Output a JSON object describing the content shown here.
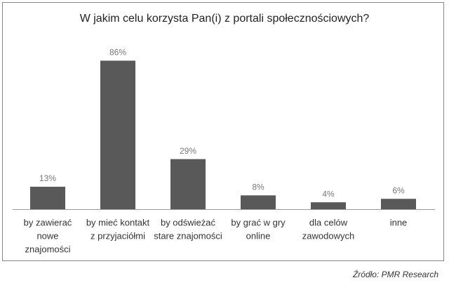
{
  "chart_data": {
    "type": "bar",
    "title": "W jakim celu korzysta Pan(i) z portali społecznościowych?",
    "categories": [
      [
        "by zawierać",
        "nowe",
        "znajomości"
      ],
      [
        "by mieć kontakt",
        "z przyjaciółmi"
      ],
      [
        "by odświeżać",
        "stare znajomości"
      ],
      [
        "by grać w gry",
        "online"
      ],
      [
        "dla celów",
        "zawodowych"
      ],
      [
        "inne"
      ]
    ],
    "values": [
      13,
      86,
      29,
      8,
      4,
      6
    ],
    "value_labels": [
      "13%",
      "86%",
      "29%",
      "8%",
      "4%",
      "6%"
    ],
    "color": "#595959",
    "source": "Źródło: PMR Research"
  }
}
